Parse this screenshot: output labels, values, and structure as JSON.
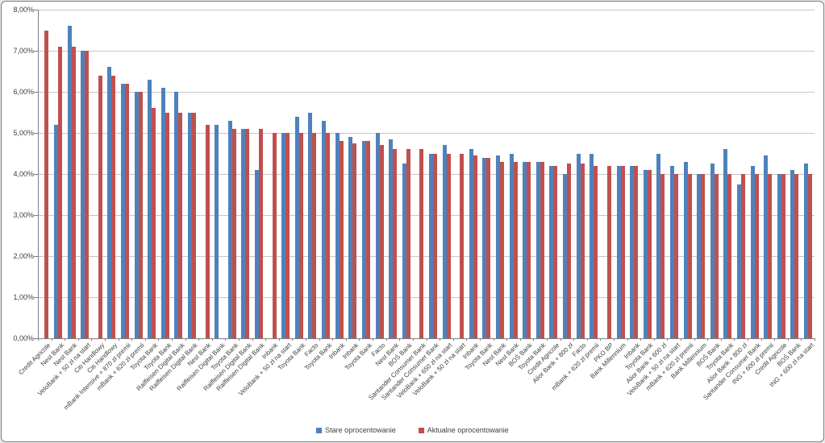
{
  "chart_data": {
    "type": "bar",
    "title": "",
    "xlabel": "",
    "ylabel": "",
    "ylim": [
      0,
      8
    ],
    "ytick_step": 1,
    "ytick_labels": [
      "0,00%",
      "1,00%",
      "2,00%",
      "3,00%",
      "4,00%",
      "5,00%",
      "6,00%",
      "7,00%",
      "8,00%"
    ],
    "grid": true,
    "legend_position": "bottom",
    "categories": [
      "Credit Agricole",
      "Nest Bank",
      "Nest Bank",
      "VeloBank + 50 zł na start",
      "Citi Handlowy",
      "Citi Handlowy",
      "mBank Intensive + 870 zł premii",
      "mBank + 620 zł premii",
      "Toyota Bank",
      "Toyota Bank",
      "Raiffeisen Digital Bank",
      "Raiffeisen Digital Bank",
      "Nest Bank",
      "Raiffeisen Digital Bank",
      "Toyota Bank",
      "Raiffeisen Digital Bank",
      "Raiffeisen Digital Bank",
      "Inbank",
      "VeloBank + 50 zł na start",
      "Toyota Bank",
      "Facto",
      "Toyota Bank",
      "Inbank",
      "Inbank",
      "Toyota Bank",
      "Facto",
      "Nest Bank",
      "BOŚ Bank",
      "Santander Consumer Bank",
      "Santander Consumer Bank",
      "VeloBank + 650 zł na start",
      "VeloBank + 50 zł na start",
      "Inbank",
      "Toyota Bank",
      "Nest Bank",
      "Nest Bank",
      "BOŚ Bank",
      "Toyota Bank",
      "Credit Agricole",
      "Alior Bank + 800 zł",
      "Facto",
      "mBank + 620 zł premii",
      "PKO BP",
      "Bank Millennium",
      "Inbank",
      "Toyota Bank",
      "Alior Bank + 600 zł",
      "VeloBank + 50 zł na start",
      "mBank + 620 zł premii",
      "Bank Millennium",
      "BOŚ Bank",
      "Toyota Bank",
      "Alior Bank + 800 zł",
      "Santander Consumer Bank",
      "ING + 600 zł premii",
      "Credit Agricole",
      "BOŚ Bank",
      "ING + 600 zł na start"
    ],
    "series": [
      {
        "name": "Stare oprocentowanie",
        "color": "#4F81BD",
        "values": [
          null,
          5.2,
          7.6,
          7.0,
          null,
          6.6,
          6.2,
          6.0,
          6.3,
          6.1,
          6.0,
          5.5,
          null,
          5.2,
          5.3,
          5.1,
          4.1,
          null,
          5.0,
          5.4,
          5.5,
          5.3,
          5.0,
          4.9,
          4.8,
          5.0,
          4.85,
          4.25,
          null,
          4.5,
          4.7,
          null,
          4.6,
          4.4,
          4.45,
          4.5,
          4.3,
          4.3,
          4.2,
          4.0,
          4.5,
          4.5,
          null,
          4.2,
          4.2,
          4.1,
          4.5,
          4.2,
          4.3,
          4.0,
          4.25,
          4.6,
          3.75,
          4.2,
          4.45,
          4.0,
          4.1,
          4.25
        ]
      },
      {
        "name": "Aktualne oprocentowanie",
        "color": "#C0504D",
        "values": [
          7.5,
          7.1,
          7.1,
          7.0,
          6.4,
          6.4,
          6.2,
          6.0,
          5.6,
          5.5,
          5.5,
          5.5,
          5.2,
          null,
          5.1,
          5.1,
          5.1,
          5.0,
          5.0,
          5.0,
          5.0,
          5.0,
          4.8,
          4.75,
          4.8,
          4.7,
          4.6,
          4.6,
          4.6,
          4.5,
          4.5,
          4.5,
          4.45,
          4.4,
          4.3,
          4.3,
          4.3,
          4.3,
          4.2,
          4.25,
          4.25,
          4.2,
          4.2,
          4.2,
          4.2,
          4.1,
          4.0,
          4.0,
          4.0,
          4.0,
          4.0,
          4.0,
          4.0,
          4.0,
          4.0,
          4.0,
          4.0,
          4.0
        ]
      }
    ],
    "axis_color": "#808080",
    "gridline_color": "#C6C6C6"
  },
  "legend": {
    "old_label": "Stare oprocentowanie",
    "new_label": "Aktualne oprocentowanie"
  }
}
